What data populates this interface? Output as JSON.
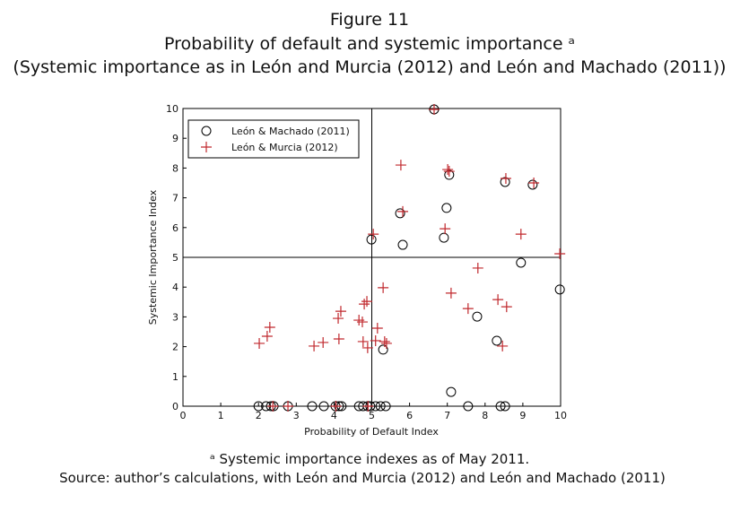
{
  "chart_data": {
    "type": "scatter",
    "title": "Figure 11",
    "subtitle": "Probability of default and systemic importance ᵃ",
    "subtitle2": "(Systemic importance as in León and Murcia (2012) and León and Machado (2011))",
    "xlabel": "Probability of Default Index",
    "ylabel": "Systemic Importance Index",
    "footnote": "ᵃ Systemic importance indexes as of May 2011.",
    "source": "Source: author’s calculations, with León and Murcia (2012) and León and Machado (2011)",
    "xlim": [
      0,
      10
    ],
    "ylim": [
      0,
      10
    ],
    "xticks": [
      0,
      1,
      2,
      3,
      4,
      5,
      6,
      7,
      8,
      9,
      10
    ],
    "yticks": [
      0,
      1,
      2,
      3,
      4,
      5,
      6,
      7,
      8,
      9,
      10
    ],
    "reference_x": 5,
    "reference_y": 5,
    "legend": "top-left",
    "series": [
      {
        "name": "León & Machado (2011)",
        "marker": "circle",
        "color": "#000000",
        "x": [
          2.0,
          2.2,
          2.33,
          2.4,
          2.78,
          3.42,
          3.73,
          4.04,
          4.13,
          4.2,
          4.66,
          4.77,
          4.89,
          4.96,
          5.1,
          5.23,
          5.37,
          8.41,
          8.53,
          4.99,
          5.3,
          5.82,
          5.75,
          6.65,
          6.91,
          6.98,
          7.05,
          7.1,
          7.55,
          7.79,
          8.31,
          8.53,
          8.95,
          9.26,
          9.98
        ],
        "values": [
          0,
          0,
          0,
          0,
          0,
          0,
          0,
          0,
          0,
          0,
          0,
          0,
          0,
          0,
          0,
          0,
          0,
          0,
          0,
          5.6,
          1.9,
          5.42,
          6.48,
          9.97,
          5.66,
          6.66,
          7.77,
          0.48,
          0,
          3.01,
          2.2,
          7.53,
          4.82,
          7.44,
          3.92
        ]
      },
      {
        "name": "León & Murcia (2012)",
        "marker": "plus",
        "color": "#c0282d",
        "x": [
          2.02,
          2.23,
          2.3,
          2.38,
          2.78,
          3.47,
          3.71,
          4.13,
          4.11,
          4.18,
          4.66,
          4.75,
          4.8,
          4.87,
          4.77,
          4.89,
          5.04,
          5.1,
          5.15,
          5.3,
          5.34,
          5.39,
          5.77,
          5.82,
          6.65,
          6.94,
          7.01,
          7.05,
          7.1,
          7.55,
          7.81,
          8.34,
          8.46,
          8.55,
          8.57,
          8.95,
          9.29,
          9.98,
          4.05,
          4.9
        ],
        "values": [
          2.11,
          2.35,
          2.65,
          0,
          0,
          2.02,
          2.14,
          2.26,
          2.95,
          3.19,
          2.89,
          2.83,
          3.43,
          3.52,
          2.17,
          1.96,
          5.78,
          2.2,
          2.62,
          3.98,
          2.17,
          2.11,
          8.1,
          6.54,
          9.97,
          5.96,
          7.95,
          7.89,
          3.8,
          3.28,
          4.64,
          3.58,
          2.02,
          7.65,
          3.34,
          5.78,
          7.5,
          5.12,
          0,
          0
        ]
      }
    ]
  }
}
